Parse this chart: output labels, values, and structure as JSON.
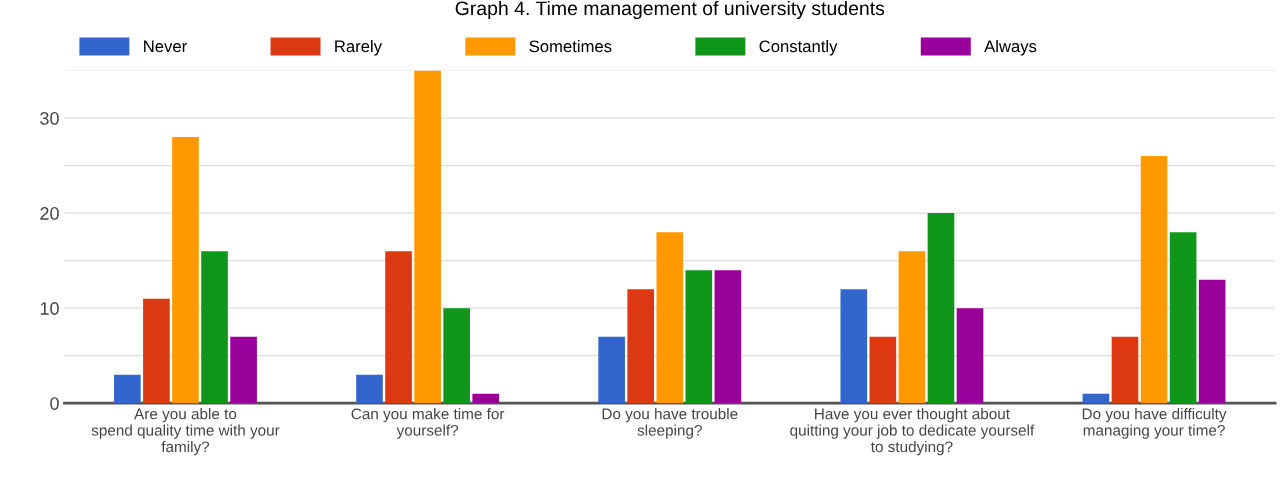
{
  "chart_data": {
    "type": "bar",
    "title": "Graph 4. Time management of university students",
    "categories": [
      "Are you able to\nspend quality time with your\nfamily?",
      "Can you make time for\nyourself?",
      "Do you have trouble\nsleeping?",
      "Have you ever thought about\nquitting your job to dedicate yourself\nto studying?",
      "Do you have difficulty\nmanaging your time?"
    ],
    "series": [
      {
        "name": "Never",
        "color": "#3366cc",
        "values": [
          3,
          3,
          7,
          12,
          1
        ]
      },
      {
        "name": "Rarely",
        "color": "#dc3912",
        "values": [
          11,
          16,
          12,
          7,
          7
        ]
      },
      {
        "name": "Sometimes",
        "color": "#ff9900",
        "values": [
          28,
          35,
          18,
          16,
          26
        ]
      },
      {
        "name": "Constantly",
        "color": "#109618",
        "values": [
          16,
          10,
          14,
          20,
          18
        ]
      },
      {
        "name": "Always",
        "color": "#990099",
        "values": [
          7,
          1,
          14,
          10,
          13
        ]
      }
    ],
    "ylim": [
      0,
      35
    ],
    "yticks": [
      0,
      {
        "value": 5,
        "label": null
      },
      10,
      {
        "value": 15,
        "label": null
      },
      20,
      {
        "value": 25,
        "label": null
      },
      30,
      {
        "value": 35,
        "label": null
      }
    ],
    "grid": "y",
    "legend": "top left"
  }
}
